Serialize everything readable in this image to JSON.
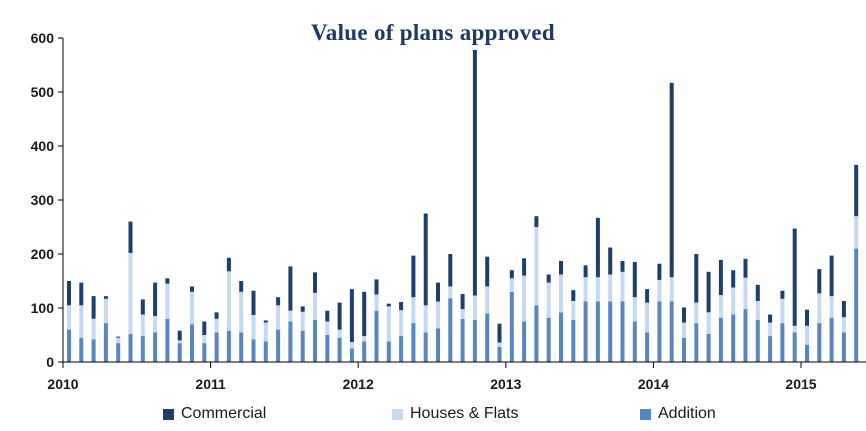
{
  "chart_data": {
    "type": "bar",
    "stacked": true,
    "title": "Value of plans approved",
    "xlabel": "",
    "ylabel": "",
    "ylim": [
      0,
      600
    ],
    "yticks": [
      0,
      100,
      200,
      300,
      400,
      500,
      600
    ],
    "x_tick_labels": [
      "2010",
      "2011",
      "2012",
      "2013",
      "2014",
      "2015"
    ],
    "grid": false,
    "legend_position": "bottom",
    "legend": [
      "Commercial",
      "Houses & Flats",
      "Addition"
    ],
    "colors": {
      "Commercial": "#1f3f6b",
      "Houses & Flats": "#c6d9f0",
      "Addition": "#5a86c0"
    },
    "categories": [
      "2010-01",
      "2010-02",
      "2010-03",
      "2010-04",
      "2010-05",
      "2010-06",
      "2010-07",
      "2010-08",
      "2010-09",
      "2010-10",
      "2010-11",
      "2010-12",
      "2011-01",
      "2011-02",
      "2011-03",
      "2011-04",
      "2011-05",
      "2011-06",
      "2011-07",
      "2011-08",
      "2011-09",
      "2011-10",
      "2011-11",
      "2011-12",
      "2012-01",
      "2012-02",
      "2012-03",
      "2012-04",
      "2012-05",
      "2012-06",
      "2012-07",
      "2012-08",
      "2012-09",
      "2012-10",
      "2012-11",
      "2012-12",
      "2013-01",
      "2013-02",
      "2013-03",
      "2013-04",
      "2013-05",
      "2013-06",
      "2013-07",
      "2013-08",
      "2013-09",
      "2013-10",
      "2013-11",
      "2013-12",
      "2014-01",
      "2014-02",
      "2014-03",
      "2014-04",
      "2014-05",
      "2014-06",
      "2014-07",
      "2014-08",
      "2014-09",
      "2014-10",
      "2014-11",
      "2014-12",
      "2015-01",
      "2015-02",
      "2015-03",
      "2015-04",
      "2015-05",
      "2015-06",
      "2015-07"
    ],
    "series": [
      {
        "name": "Addition",
        "values": [
          60,
          45,
          42,
          72,
          35,
          52,
          48,
          55,
          80,
          35,
          70,
          35,
          55,
          58,
          55,
          42,
          38,
          60,
          75,
          58,
          78,
          50,
          45,
          25,
          38,
          95,
          38,
          48,
          72,
          55,
          62,
          118,
          80,
          78,
          90,
          28,
          130,
          75,
          105,
          82,
          92,
          78,
          112,
          112,
          112,
          112,
          75,
          55,
          112,
          112,
          45,
          72,
          52,
          82,
          88,
          98,
          78,
          48,
          72,
          55,
          32,
          72,
          82,
          55,
          210,
          60,
          70
        ]
      },
      {
        "name": "Houses & Flats",
        "values": [
          45,
          60,
          38,
          45,
          10,
          150,
          40,
          30,
          65,
          5,
          60,
          15,
          25,
          110,
          75,
          45,
          35,
          45,
          20,
          35,
          50,
          25,
          15,
          12,
          10,
          30,
          65,
          48,
          48,
          50,
          50,
          22,
          18,
          45,
          50,
          8,
          25,
          85,
          145,
          65,
          70,
          35,
          45,
          45,
          50,
          55,
          45,
          55,
          40,
          45,
          28,
          38,
          40,
          42,
          50,
          58,
          35,
          25,
          45,
          12,
          35,
          55,
          40,
          28,
          60,
          48,
          30
        ]
      },
      {
        "name": "Commercial",
        "values": [
          45,
          42,
          42,
          5,
          2,
          58,
          28,
          62,
          10,
          18,
          10,
          25,
          12,
          25,
          20,
          45,
          4,
          15,
          82,
          10,
          38,
          20,
          50,
          98,
          82,
          28,
          5,
          15,
          77,
          170,
          35,
          60,
          28,
          455,
          55,
          35,
          15,
          32,
          20,
          15,
          25,
          20,
          22,
          110,
          50,
          20,
          65,
          25,
          30,
          360,
          28,
          90,
          75,
          65,
          32,
          35,
          30,
          15,
          15,
          180,
          30,
          45,
          75,
          30,
          95,
          60,
          45
        ]
      }
    ]
  }
}
